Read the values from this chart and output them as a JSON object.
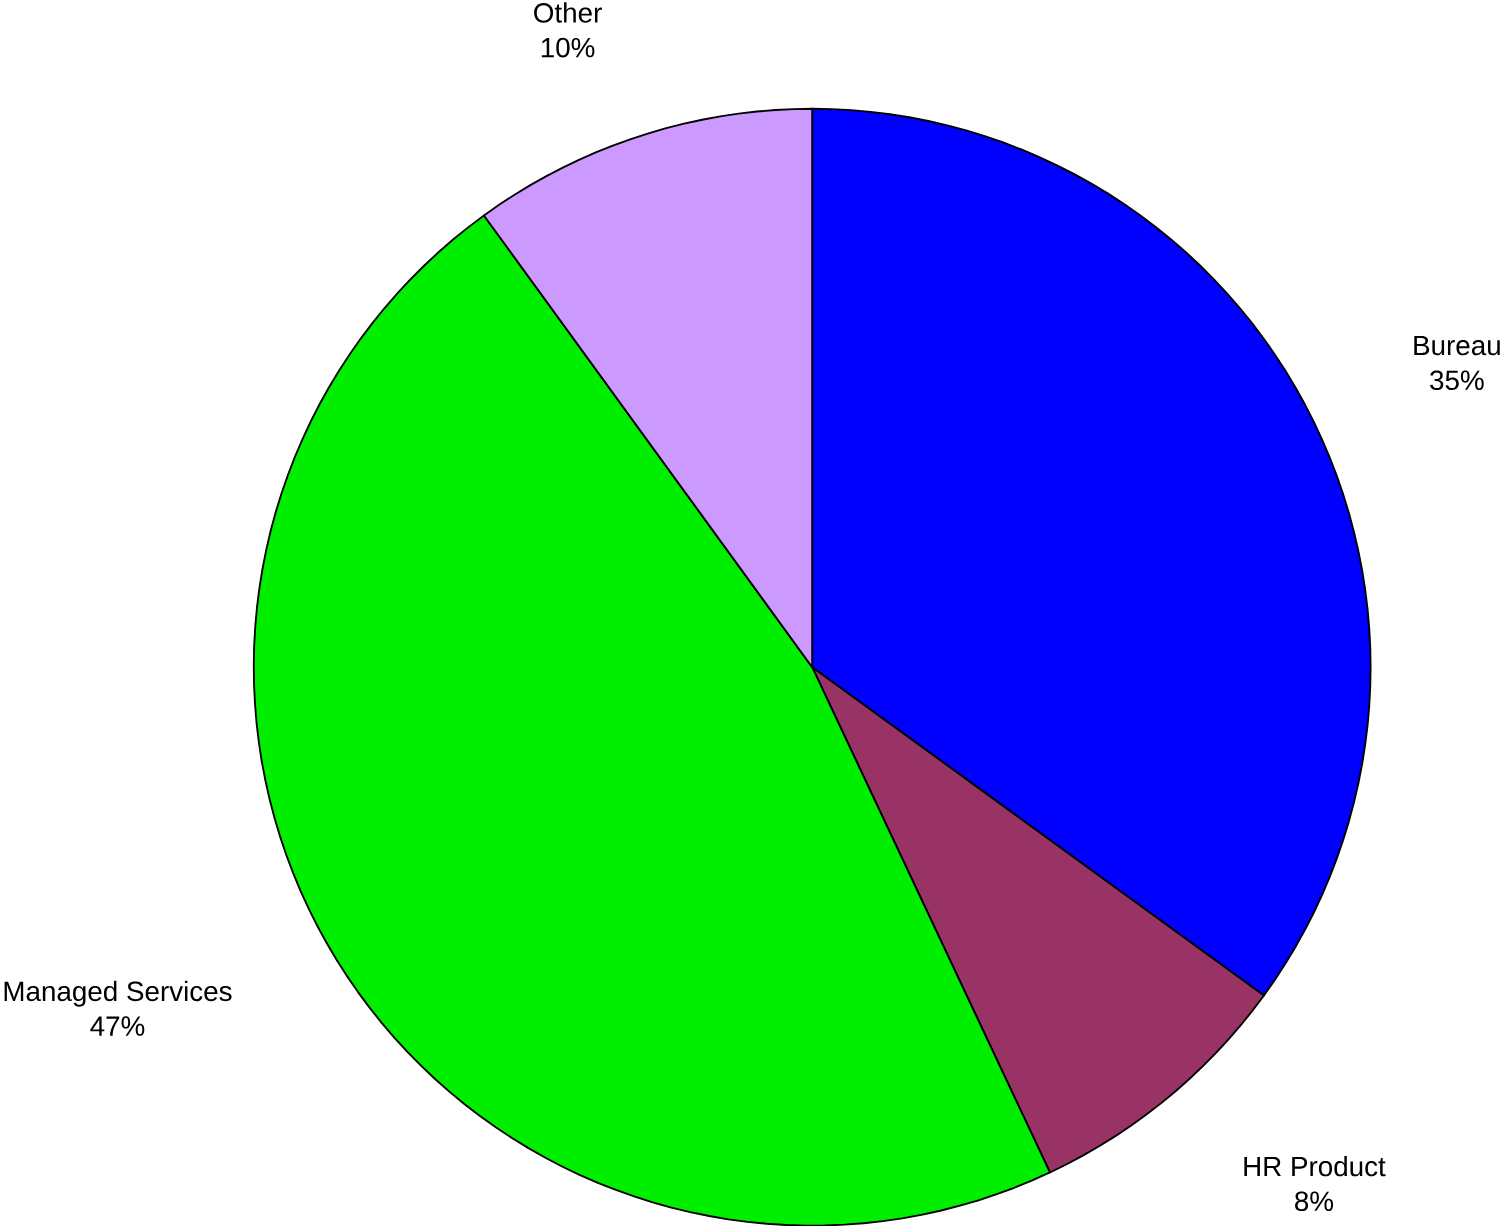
{
  "chart_data": {
    "type": "pie",
    "categories": [
      "Bureau",
      "HR Product",
      "Managed Services",
      "Other"
    ],
    "values": [
      35,
      8,
      47,
      10
    ],
    "value_labels": [
      "35%",
      "8%",
      "47%",
      "10%"
    ],
    "colors": [
      "#0000ff",
      "#993366",
      "#00ee00",
      "#cc99ff"
    ]
  }
}
